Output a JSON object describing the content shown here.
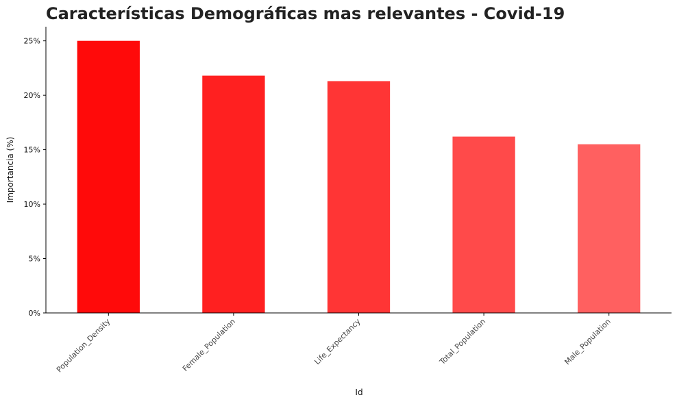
{
  "chart_data": {
    "type": "bar",
    "title": "Características Demográficas mas relevantes - Covid-19",
    "xlabel": "Id",
    "ylabel": "Importancia (%)",
    "categories": [
      "Population_Density",
      "Female_Population",
      "Life_Expectancy",
      "Total_Population",
      "Male_Population"
    ],
    "values": [
      25.0,
      21.8,
      21.3,
      16.2,
      15.5
    ],
    "ylim": [
      0,
      26.3
    ],
    "yticks": [
      0,
      5,
      10,
      15,
      20,
      25
    ],
    "ytick_labels": [
      "0%",
      "5%",
      "10%",
      "15%",
      "20%",
      "25%"
    ],
    "bar_colors": [
      "#ff0a0a",
      "#ff2020",
      "#ff3535",
      "#ff4a4a",
      "#ff6060"
    ],
    "grid": false,
    "legend": "none"
  }
}
